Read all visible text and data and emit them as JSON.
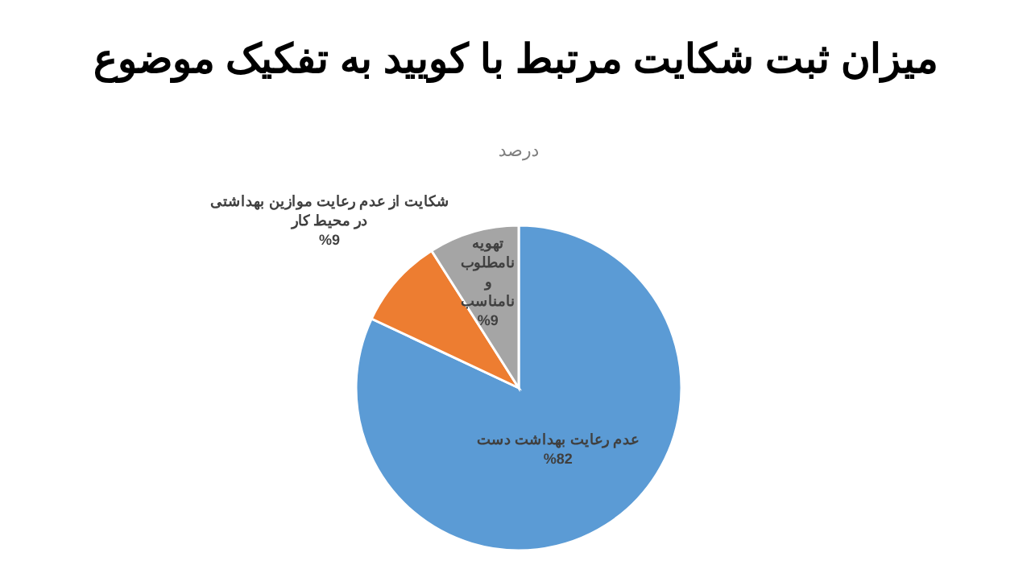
{
  "chart_data": {
    "type": "pie",
    "title": "میزان ثبت شکایت مرتبط با کویید به تفکیک موضوع",
    "subtitle": "درصد",
    "categories": [
      "عدم رعایت بهداشت دست",
      "شکایت از عدم رعایت موازین بهداشتی در محیط کار",
      "تهویه نامطلوب و نامناسب"
    ],
    "values": [
      82,
      9,
      9
    ],
    "colors": [
      "#5b9bd5",
      "#ed7d31",
      "#a5a5a5"
    ],
    "value_labels": [
      "%82",
      "%9",
      "%9"
    ]
  }
}
